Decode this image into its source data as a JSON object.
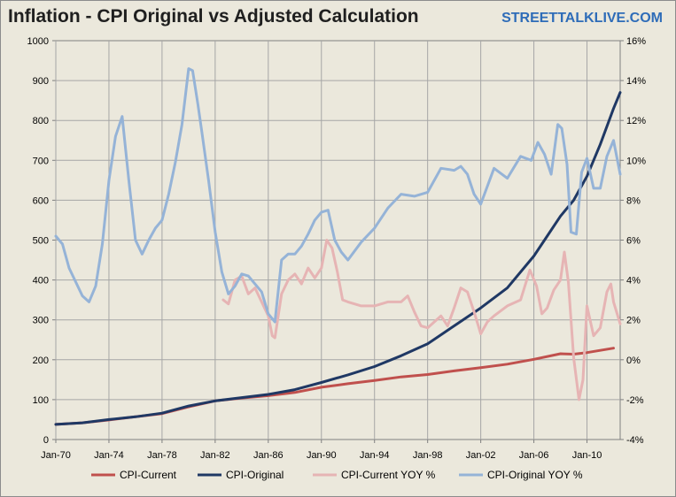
{
  "title": "Inflation - CPI Original vs Adjusted Calculation",
  "brand": "STREETTALKLIVE.COM",
  "chart_data": {
    "type": "line",
    "title": "Inflation - CPI Original vs Adjusted Calculation",
    "xlabel": "",
    "ylabel_left": "",
    "ylabel_right": "",
    "grid": true,
    "legend_position": "bottom",
    "xlim": [
      1970,
      2012.5
    ],
    "ylim_left": [
      0,
      1000
    ],
    "ylim_right": [
      -4,
      16
    ],
    "x_ticks": [
      {
        "x": 1970,
        "label": "Jan-70"
      },
      {
        "x": 1974,
        "label": "Jan-74"
      },
      {
        "x": 1978,
        "label": "Jan-78"
      },
      {
        "x": 1982,
        "label": "Jan-82"
      },
      {
        "x": 1986,
        "label": "Jan-86"
      },
      {
        "x": 1990,
        "label": "Jan-90"
      },
      {
        "x": 1994,
        "label": "Jan-94"
      },
      {
        "x": 1998,
        "label": "Jan-98"
      },
      {
        "x": 2002,
        "label": "Jan-02"
      },
      {
        "x": 2006,
        "label": "Jan-06"
      },
      {
        "x": 2010,
        "label": "Jan-10"
      }
    ],
    "y_left_ticks": [
      "0",
      "100",
      "200",
      "300",
      "400",
      "500",
      "600",
      "700",
      "800",
      "900",
      "1000"
    ],
    "y_right_ticks": [
      "-4%",
      "-2%",
      "0%",
      "2%",
      "4%",
      "6%",
      "8%",
      "10%",
      "12%",
      "14%",
      "16%"
    ],
    "series": [
      {
        "name": "CPI-Current",
        "axis": "left",
        "color": "#c0504d",
        "x": [
          1970,
          1972,
          1974,
          1976,
          1978,
          1980,
          1982,
          1984,
          1986,
          1988,
          1990,
          1992,
          1994,
          1996,
          1998,
          2000,
          2002,
          2004,
          2006,
          2008,
          2009,
          2010,
          2012
        ],
        "y": [
          38,
          42,
          49,
          57,
          65,
          82,
          97,
          104,
          110,
          118,
          131,
          140,
          148,
          157,
          163,
          172,
          180,
          189,
          201,
          215,
          214,
          218,
          229
        ]
      },
      {
        "name": "CPI-Original",
        "axis": "left",
        "color": "#1f3864",
        "x": [
          1970,
          1972,
          1974,
          1976,
          1978,
          1980,
          1982,
          1984,
          1986,
          1988,
          1990,
          1992,
          1994,
          1996,
          1998,
          2000,
          2002,
          2004,
          2006,
          2007,
          2008,
          2009,
          2010,
          2011,
          2012,
          2012.5
        ],
        "y": [
          38,
          42,
          50,
          57,
          66,
          84,
          97,
          105,
          113,
          125,
          143,
          162,
          183,
          210,
          240,
          285,
          330,
          380,
          460,
          510,
          560,
          600,
          660,
          740,
          830,
          870
        ]
      },
      {
        "name": "CPI-Current YOY %",
        "axis": "right",
        "color": "#e6b4b4",
        "x": [
          1982.6,
          1983.0,
          1983.5,
          1984.0,
          1984.5,
          1985.0,
          1985.5,
          1986.0,
          1986.3,
          1986.5,
          1987.0,
          1987.5,
          1988.0,
          1988.5,
          1989.0,
          1989.5,
          1990.0,
          1990.4,
          1990.8,
          1991.2,
          1991.6,
          1992.0,
          1993.0,
          1994.0,
          1995.0,
          1996.0,
          1996.5,
          1997.0,
          1997.5,
          1998.0,
          1999.0,
          1999.5,
          2000.0,
          2000.5,
          2001.0,
          2001.5,
          2002.0,
          2002.5,
          2003.0,
          2004.0,
          2005.0,
          2005.7,
          2006.2,
          2006.6,
          2007.0,
          2007.5,
          2008.0,
          2008.3,
          2008.6,
          2009.0,
          2009.4,
          2009.7,
          2010.0,
          2010.5,
          2011.0,
          2011.5,
          2011.8,
          2012.0,
          2012.5
        ],
        "y": [
          3.0,
          2.8,
          4.0,
          4.2,
          3.3,
          3.6,
          2.9,
          2.2,
          1.2,
          1.1,
          3.3,
          4.0,
          4.3,
          3.8,
          4.6,
          4.1,
          4.6,
          6.0,
          5.6,
          4.4,
          3.0,
          2.9,
          2.7,
          2.7,
          2.9,
          2.9,
          3.2,
          2.4,
          1.7,
          1.6,
          2.2,
          1.7,
          2.6,
          3.6,
          3.4,
          2.4,
          1.3,
          1.9,
          2.2,
          2.7,
          3.0,
          4.5,
          3.7,
          2.3,
          2.6,
          3.5,
          4.0,
          5.4,
          3.9,
          0.1,
          -2.0,
          -1.0,
          2.7,
          1.2,
          1.6,
          3.4,
          3.8,
          2.9,
          1.8
        ]
      },
      {
        "name": "CPI-Original YOY %",
        "axis": "right",
        "color": "#95b3d7",
        "x": [
          1970.0,
          1970.5,
          1971.0,
          1971.5,
          1972.0,
          1972.5,
          1973.0,
          1973.5,
          1974.0,
          1974.5,
          1975.0,
          1975.5,
          1976.0,
          1976.5,
          1977.0,
          1977.5,
          1978.0,
          1978.5,
          1979.0,
          1979.5,
          1980.0,
          1980.3,
          1980.7,
          1981.0,
          1981.5,
          1982.0,
          1982.5,
          1983.0,
          1983.5,
          1984.0,
          1984.5,
          1985.0,
          1985.5,
          1986.0,
          1986.5,
          1987.0,
          1987.5,
          1988.0,
          1988.5,
          1989.0,
          1989.5,
          1990.0,
          1990.5,
          1991.0,
          1991.5,
          1992.0,
          1993.0,
          1994.0,
          1995.0,
          1996.0,
          1997.0,
          1998.0,
          1999.0,
          2000.0,
          2000.5,
          2001.0,
          2001.5,
          2002.0,
          2003.0,
          2004.0,
          2005.0,
          2005.8,
          2006.3,
          2006.8,
          2007.3,
          2007.8,
          2008.1,
          2008.5,
          2008.8,
          2009.2,
          2009.6,
          2010.0,
          2010.5,
          2011.0,
          2011.5,
          2012.0,
          2012.5
        ],
        "y": [
          6.2,
          5.8,
          4.6,
          3.9,
          3.2,
          2.9,
          3.7,
          5.8,
          9.0,
          11.2,
          12.2,
          9.0,
          6.0,
          5.3,
          6.0,
          6.6,
          7.0,
          8.3,
          9.9,
          11.8,
          14.6,
          14.5,
          12.8,
          11.4,
          9.0,
          6.4,
          4.4,
          3.3,
          3.7,
          4.3,
          4.2,
          3.8,
          3.4,
          2.3,
          1.9,
          5.0,
          5.3,
          5.3,
          5.7,
          6.3,
          7.0,
          7.4,
          7.5,
          6.0,
          5.4,
          5.0,
          5.9,
          6.6,
          7.6,
          8.3,
          8.2,
          8.4,
          9.6,
          9.5,
          9.7,
          9.3,
          8.3,
          7.8,
          9.6,
          9.1,
          10.2,
          10.0,
          10.9,
          10.3,
          9.3,
          11.8,
          11.6,
          9.8,
          6.4,
          6.3,
          9.4,
          10.1,
          8.6,
          8.6,
          10.2,
          11.0,
          9.3
        ]
      }
    ]
  }
}
